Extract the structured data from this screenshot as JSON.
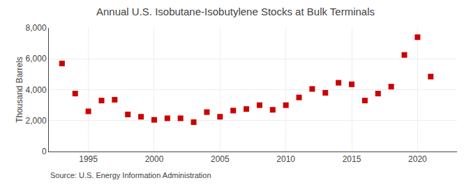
{
  "chart_data": {
    "type": "scatter",
    "title": "Annual U.S. Isobutane-Isobutylene Stocks at Bulk Terminals",
    "ylabel": "Thousand Barrels",
    "annotations": [
      "Source: U.S. Energy Information Administration"
    ],
    "x": [
      1993,
      1994,
      1995,
      1996,
      1997,
      1998,
      1999,
      2000,
      2001,
      2002,
      2003,
      2004,
      2005,
      2006,
      2007,
      2008,
      2009,
      2010,
      2011,
      2012,
      2013,
      2014,
      2015,
      2016,
      2017,
      2018,
      2019,
      2020,
      2021
    ],
    "values": [
      5700,
      3750,
      2600,
      3300,
      3350,
      2400,
      2250,
      2050,
      2150,
      2150,
      1900,
      2550,
      2250,
      2650,
      2750,
      3000,
      2700,
      3000,
      3500,
      4050,
      3800,
      4450,
      4350,
      3300,
      3750,
      4200,
      6250,
      7400,
      4850
    ],
    "color": "#cc0000",
    "marker": "square",
    "xlim": [
      1992,
      2023
    ],
    "xticks": [
      1995,
      2000,
      2005,
      2010,
      2015,
      2020
    ],
    "ylim": [
      0,
      8000
    ],
    "yticks": [
      0,
      {
        "value": 2000,
        "label": "2,000"
      },
      {
        "value": 4000,
        "label": "4,000"
      },
      {
        "value": 6000,
        "label": "6,000"
      },
      {
        "value": 8000,
        "label": "8,000"
      }
    ],
    "grid": true
  }
}
